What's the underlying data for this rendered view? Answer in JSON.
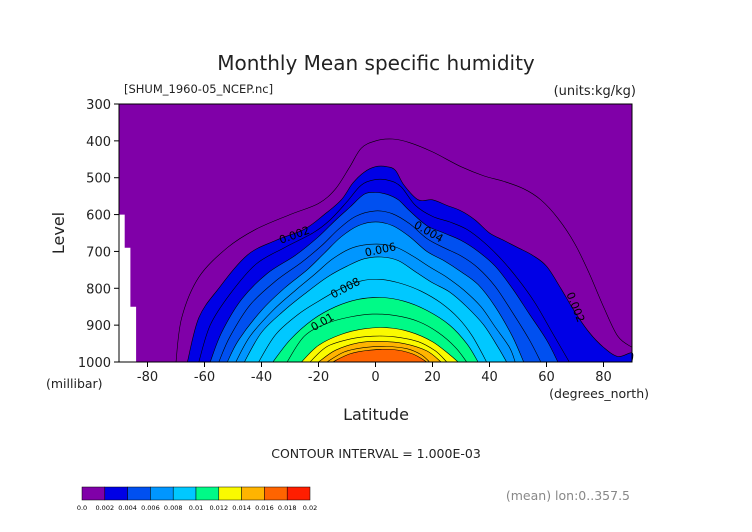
{
  "header": {
    "title": "Monthly Mean specific humidity",
    "file_label": "[SHUM_1960-05_NCEP.nc]",
    "units_label": "(units:kg/kg)"
  },
  "axes": {
    "y_label": "Level",
    "y_unit": "(millibar)",
    "x_label": "Latitude",
    "x_unit": "(degrees_north)"
  },
  "footer": {
    "contour_interval": "CONTOUR INTERVAL = 1.000E-03",
    "mean_note": "(mean) lon:0..357.5"
  },
  "chart_data": {
    "type": "contour",
    "x_label": "Latitude",
    "y_label": "Level",
    "x_range": [
      -90,
      90
    ],
    "y_range": [
      1000,
      300
    ],
    "y_reversed": true,
    "x_ticks": [
      "-80",
      "-60",
      "-40",
      "-20",
      "0",
      "20",
      "40",
      "60",
      "80"
    ],
    "x_tick_values": [
      -80,
      -60,
      -40,
      -20,
      0,
      20,
      40,
      60,
      80
    ],
    "y_ticks": [
      "300",
      "400",
      "500",
      "600",
      "700",
      "800",
      "900",
      "1000"
    ],
    "y_tick_values": [
      300,
      400,
      500,
      600,
      700,
      800,
      900,
      1000
    ],
    "contour_interval": 0.001,
    "colorbar": {
      "labels": [
        "0.0",
        "0.002",
        "0.004",
        "0.006",
        "0.008",
        "0.01",
        "0.012",
        "0.014",
        "0.016",
        "0.018",
        "0.02"
      ],
      "colors": [
        "#8000a8",
        "#0000e6",
        "#0050f0",
        "#0096ff",
        "#00c8ff",
        "#00fa87",
        "#fafa00",
        "#ffb400",
        "#ff6400",
        "#ff1e00"
      ]
    },
    "filled_levels": [
      {
        "threshold": 0.002,
        "color": "#0000e6",
        "points": [
          [
            -66,
            1000
          ],
          [
            -62,
            880
          ],
          [
            -55,
            800
          ],
          [
            -45,
            710
          ],
          [
            -35,
            670
          ],
          [
            -25,
            640
          ],
          [
            -18,
            600
          ],
          [
            -12,
            560
          ],
          [
            -8,
            515
          ],
          [
            -4,
            485
          ],
          [
            0,
            470
          ],
          [
            4,
            470
          ],
          [
            7,
            480
          ],
          [
            10,
            520
          ],
          [
            15,
            560
          ],
          [
            20,
            560
          ],
          [
            25,
            575
          ],
          [
            30,
            590
          ],
          [
            35,
            615
          ],
          [
            40,
            650
          ],
          [
            45,
            670
          ],
          [
            50,
            690
          ],
          [
            55,
            710
          ],
          [
            60,
            740
          ],
          [
            65,
            800
          ],
          [
            70,
            865
          ],
          [
            75,
            920
          ],
          [
            80,
            960
          ],
          [
            85,
            985
          ],
          [
            90,
            975
          ],
          [
            90,
            1000
          ]
        ]
      },
      {
        "threshold": 0.004,
        "color": "#0050f0",
        "points": [
          [
            -58,
            1000
          ],
          [
            -54,
            920
          ],
          [
            -47,
            830
          ],
          [
            -38,
            760
          ],
          [
            -28,
            710
          ],
          [
            -20,
            660
          ],
          [
            -14,
            615
          ],
          [
            -9,
            580
          ],
          [
            -4,
            545
          ],
          [
            0,
            540
          ],
          [
            4,
            545
          ],
          [
            8,
            560
          ],
          [
            12,
            590
          ],
          [
            18,
            630
          ],
          [
            24,
            650
          ],
          [
            30,
            670
          ],
          [
            36,
            700
          ],
          [
            42,
            740
          ],
          [
            48,
            800
          ],
          [
            54,
            870
          ],
          [
            60,
            940
          ],
          [
            64,
            1000
          ]
        ]
      },
      {
        "threshold": 0.006,
        "color": "#0096ff",
        "points": [
          [
            -52,
            1000
          ],
          [
            -48,
            940
          ],
          [
            -40,
            860
          ],
          [
            -32,
            800
          ],
          [
            -24,
            750
          ],
          [
            -18,
            705
          ],
          [
            -12,
            660
          ],
          [
            -6,
            630
          ],
          [
            0,
            620
          ],
          [
            6,
            630
          ],
          [
            12,
            660
          ],
          [
            18,
            700
          ],
          [
            24,
            725
          ],
          [
            30,
            755
          ],
          [
            36,
            790
          ],
          [
            42,
            850
          ],
          [
            48,
            930
          ],
          [
            52,
            1000
          ]
        ]
      },
      {
        "threshold": 0.008,
        "color": "#00c8ff",
        "points": [
          [
            -46,
            1000
          ],
          [
            -40,
            920
          ],
          [
            -32,
            860
          ],
          [
            -24,
            810
          ],
          [
            -17,
            770
          ],
          [
            -10,
            740
          ],
          [
            -4,
            720
          ],
          [
            2,
            715
          ],
          [
            8,
            725
          ],
          [
            14,
            755
          ],
          [
            20,
            785
          ],
          [
            26,
            810
          ],
          [
            32,
            850
          ],
          [
            38,
            900
          ],
          [
            43,
            960
          ],
          [
            46,
            1000
          ]
        ]
      },
      {
        "threshold": 0.01,
        "color": "#00fa87",
        "points": [
          [
            -36,
            1000
          ],
          [
            -30,
            940
          ],
          [
            -22,
            885
          ],
          [
            -14,
            850
          ],
          [
            -6,
            830
          ],
          [
            2,
            825
          ],
          [
            10,
            835
          ],
          [
            18,
            860
          ],
          [
            26,
            900
          ],
          [
            32,
            950
          ],
          [
            36,
            1000
          ]
        ]
      },
      {
        "threshold": 0.012,
        "color": "#fafa00",
        "points": [
          [
            -26,
            1000
          ],
          [
            -20,
            955
          ],
          [
            -12,
            925
          ],
          [
            -4,
            910
          ],
          [
            4,
            907
          ],
          [
            12,
            918
          ],
          [
            20,
            945
          ],
          [
            26,
            980
          ],
          [
            29,
            1000
          ]
        ]
      },
      {
        "threshold": 0.014,
        "color": "#ffb400",
        "points": [
          [
            -20,
            1000
          ],
          [
            -14,
            968
          ],
          [
            -6,
            948
          ],
          [
            2,
            944
          ],
          [
            10,
            950
          ],
          [
            18,
            970
          ],
          [
            23,
            1000
          ]
        ]
      },
      {
        "threshold": 0.016,
        "color": "#ff6400",
        "points": [
          [
            -15,
            1000
          ],
          [
            -9,
            978
          ],
          [
            -2,
            968
          ],
          [
            6,
            966
          ],
          [
            13,
            978
          ],
          [
            18,
            1000
          ]
        ]
      }
    ],
    "line_levels": [
      {
        "threshold": 0.001,
        "points": [
          [
            -70,
            1000
          ],
          [
            -68,
            880
          ],
          [
            -62,
            770
          ],
          [
            -52,
            690
          ],
          [
            -42,
            640
          ],
          [
            -30,
            600
          ],
          [
            -20,
            570
          ],
          [
            -14,
            530
          ],
          [
            -9,
            470
          ],
          [
            -5,
            420
          ],
          [
            0,
            400
          ],
          [
            6,
            395
          ],
          [
            12,
            405
          ],
          [
            20,
            430
          ],
          [
            30,
            470
          ],
          [
            38,
            495
          ],
          [
            45,
            510
          ],
          [
            52,
            530
          ],
          [
            58,
            560
          ],
          [
            64,
            610
          ],
          [
            70,
            680
          ],
          [
            75,
            760
          ],
          [
            80,
            850
          ],
          [
            85,
            930
          ],
          [
            90,
            960
          ]
        ]
      },
      {
        "threshold": 0.003,
        "points": [
          [
            -62,
            1000
          ],
          [
            -58,
            900
          ],
          [
            -51,
            815
          ],
          [
            -42,
            735
          ],
          [
            -32,
            690
          ],
          [
            -22,
            650
          ],
          [
            -16,
            615
          ],
          [
            -10,
            565
          ],
          [
            -5,
            520
          ],
          [
            0,
            505
          ],
          [
            5,
            508
          ],
          [
            9,
            525
          ],
          [
            14,
            575
          ],
          [
            20,
            605
          ],
          [
            26,
            620
          ],
          [
            32,
            640
          ],
          [
            38,
            675
          ],
          [
            44,
            720
          ],
          [
            50,
            775
          ],
          [
            56,
            840
          ],
          [
            62,
            920
          ],
          [
            68,
            1000
          ]
        ]
      },
      {
        "threshold": 0.005,
        "points": [
          [
            -55,
            1000
          ],
          [
            -51,
            930
          ],
          [
            -44,
            845
          ],
          [
            -35,
            780
          ],
          [
            -26,
            730
          ],
          [
            -19,
            685
          ],
          [
            -13,
            640
          ],
          [
            -7,
            605
          ],
          [
            0,
            590
          ],
          [
            6,
            598
          ],
          [
            12,
            625
          ],
          [
            18,
            665
          ],
          [
            24,
            690
          ],
          [
            30,
            712
          ],
          [
            36,
            745
          ],
          [
            42,
            795
          ],
          [
            48,
            865
          ],
          [
            54,
            940
          ],
          [
            58,
            1000
          ]
        ]
      },
      {
        "threshold": 0.007,
        "points": [
          [
            -49,
            1000
          ],
          [
            -44,
            930
          ],
          [
            -36,
            860
          ],
          [
            -28,
            805
          ],
          [
            -21,
            760
          ],
          [
            -15,
            720
          ],
          [
            -8,
            690
          ],
          [
            0,
            680
          ],
          [
            7,
            688
          ],
          [
            13,
            712
          ],
          [
            19,
            742
          ],
          [
            25,
            770
          ],
          [
            31,
            805
          ],
          [
            37,
            850
          ],
          [
            42,
            905
          ],
          [
            47,
            960
          ],
          [
            49,
            1000
          ]
        ]
      },
      {
        "threshold": 0.009,
        "points": [
          [
            -41,
            1000
          ],
          [
            -35,
            925
          ],
          [
            -27,
            870
          ],
          [
            -20,
            835
          ],
          [
            -12,
            800
          ],
          [
            -5,
            780
          ],
          [
            2,
            776
          ],
          [
            9,
            787
          ],
          [
            16,
            808
          ],
          [
            23,
            840
          ],
          [
            29,
            880
          ],
          [
            34,
            930
          ],
          [
            39,
            1000
          ]
        ]
      },
      {
        "threshold": 0.011,
        "points": [
          [
            -31,
            1000
          ],
          [
            -25,
            930
          ],
          [
            -17,
            895
          ],
          [
            -9,
            878
          ],
          [
            -1,
            870
          ],
          [
            7,
            874
          ],
          [
            15,
            890
          ],
          [
            22,
            920
          ],
          [
            28,
            960
          ],
          [
            32,
            1000
          ]
        ]
      },
      {
        "threshold": 0.013,
        "points": [
          [
            -23,
            1000
          ],
          [
            -17,
            958
          ],
          [
            -9,
            938
          ],
          [
            -1,
            930
          ],
          [
            7,
            932
          ],
          [
            15,
            945
          ],
          [
            21,
            970
          ],
          [
            25,
            1000
          ]
        ]
      },
      {
        "threshold": 0.015,
        "points": [
          [
            -17,
            1000
          ],
          [
            -11,
            973
          ],
          [
            -4,
            961
          ],
          [
            4,
            958
          ],
          [
            11,
            964
          ],
          [
            16,
            980
          ],
          [
            19,
            1000
          ]
        ]
      }
    ],
    "annotations": [
      {
        "text": "0.002",
        "lat": -28,
        "level": 665,
        "angle": -20
      },
      {
        "text": "0.004",
        "lat": 18,
        "level": 655,
        "angle": 30
      },
      {
        "text": "0.006",
        "lat": 2,
        "level": 705,
        "angle": -12
      },
      {
        "text": "0.008",
        "lat": -10,
        "level": 808,
        "angle": -28
      },
      {
        "text": "0.01",
        "lat": -18,
        "level": 900,
        "angle": -30
      },
      {
        "text": "0.002",
        "lat": 69,
        "level": 855,
        "angle": 68
      }
    ],
    "missing_regions": [
      {
        "points": [
          [
            -90,
            1000
          ],
          [
            -90,
            600
          ],
          [
            -88,
            600
          ],
          [
            -88,
            690
          ],
          [
            -86,
            690
          ],
          [
            -86,
            850
          ],
          [
            -84,
            850
          ],
          [
            -84,
            1000
          ]
        ]
      }
    ]
  }
}
